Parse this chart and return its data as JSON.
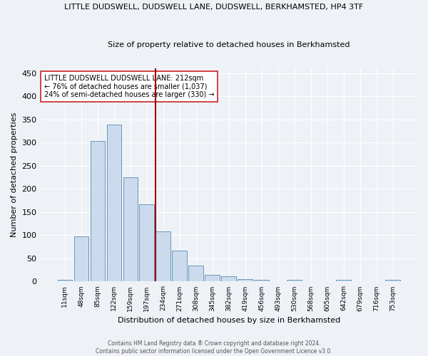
{
  "title1": "LITTLE DUDSWELL, DUDSWELL LANE, DUDSWELL, BERKHAMSTED, HP4 3TF",
  "title2": "Size of property relative to detached houses in Berkhamsted",
  "xlabel": "Distribution of detached houses by size in Berkhamsted",
  "ylabel": "Number of detached properties",
  "bin_labels": [
    "11sqm",
    "48sqm",
    "85sqm",
    "122sqm",
    "159sqm",
    "197sqm",
    "234sqm",
    "271sqm",
    "308sqm",
    "345sqm",
    "382sqm",
    "419sqm",
    "456sqm",
    "493sqm",
    "530sqm",
    "568sqm",
    "605sqm",
    "642sqm",
    "679sqm",
    "716sqm",
    "753sqm"
  ],
  "bar_values": [
    3,
    97,
    304,
    338,
    225,
    166,
    108,
    67,
    35,
    14,
    12,
    6,
    4,
    0,
    3,
    0,
    0,
    3,
    0,
    0,
    3
  ],
  "bar_color": "#ccdaed",
  "bar_edge_color": "#6699bb",
  "vline_x": 5.55,
  "vline_color": "#990000",
  "annotation_text": "LITTLE DUDSWELL DUDSWELL LANE: 212sqm\n← 76% of detached houses are smaller (1,037)\n24% of semi-detached houses are larger (330) →",
  "annotation_box_color": "white",
  "annotation_box_edge": "#cc2222",
  "ylim": [
    0,
    460
  ],
  "yticks": [
    0,
    50,
    100,
    150,
    200,
    250,
    300,
    350,
    400,
    450
  ],
  "footer_line1": "Contains HM Land Registry data ® Crown copyright and database right 2024.",
  "footer_line2": "Contains public sector information licensed under the Open Government Licence v3.0.",
  "background_color": "#eef2f7",
  "plot_bg_color": "#eef2f7",
  "grid_color": "#ffffff"
}
